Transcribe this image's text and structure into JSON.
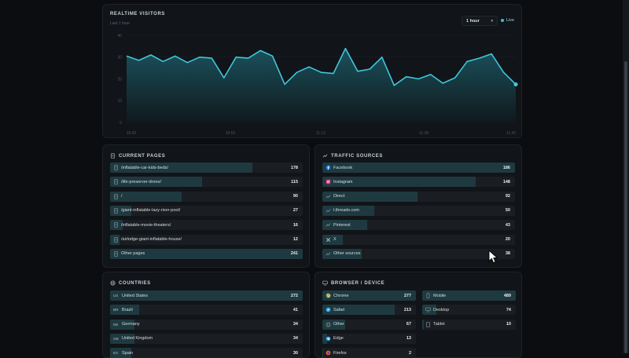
{
  "realtime": {
    "title": "REALTIME VISITORS",
    "subtitle": "Last 1 hour",
    "range": "1 hour",
    "live_label": "Live",
    "colors": {
      "line": "#3fc6dc",
      "fill_top": "#1c5560",
      "fill_bottom": "#0f1a1e"
    }
  },
  "chart_data": {
    "type": "area",
    "yticks": [
      0,
      10,
      20,
      30,
      40
    ],
    "ylim": [
      0,
      40
    ],
    "xticks": [
      "10:42",
      "10:55",
      "11:12",
      "11:28",
      "11:42"
    ],
    "values": [
      30.5,
      28.5,
      31,
      28,
      30.5,
      27.5,
      30,
      29.5,
      20.5,
      30,
      29.5,
      33,
      30.5,
      17.5,
      23,
      25.5,
      23,
      22.5,
      34,
      23.5,
      24.5,
      30,
      17,
      21,
      20,
      22,
      18,
      20.5,
      28,
      29.5,
      31.5,
      23,
      17.5
    ]
  },
  "current_pages": {
    "title": "CURRENT PAGES",
    "max": 241,
    "items": [
      {
        "label": "/inflatable-car-kids-beds/",
        "value": 178
      },
      {
        "label": "/life-preserver-drone/",
        "value": 115
      },
      {
        "label": "/",
        "value": 90
      },
      {
        "label": "/giant-inflatable-lazy-river-pool/",
        "value": 27
      },
      {
        "label": "/inflatable-movie-theaters/",
        "value": 16
      },
      {
        "label": "/airlodge-giant-inflatable-house/",
        "value": 12
      },
      {
        "label": "Other pages",
        "value": 241
      }
    ]
  },
  "traffic_sources": {
    "title": "TRAFFIC SOURCES",
    "max": 186,
    "items": [
      {
        "label": "Facebook",
        "value": 186,
        "icon": "facebook-icon"
      },
      {
        "label": "Instagram",
        "value": 148,
        "icon": "instagram-icon"
      },
      {
        "label": "Direct",
        "value": 92,
        "icon": "direct-icon"
      },
      {
        "label": "l.threads.com",
        "value": 50,
        "icon": "link-icon"
      },
      {
        "label": "Pinterest",
        "value": 43,
        "icon": "pinterest-icon"
      },
      {
        "label": "X",
        "value": 20,
        "icon": "x-icon"
      },
      {
        "label": "Other sources",
        "value": 38,
        "icon": "other-icon"
      }
    ]
  },
  "countries": {
    "title": "COUNTRIES",
    "max": 272,
    "items": [
      {
        "code": "US",
        "label": "United States",
        "value": 272
      },
      {
        "code": "BR",
        "label": "Brazil",
        "value": 41
      },
      {
        "code": "DE",
        "label": "Germany",
        "value": 34
      },
      {
        "code": "GB",
        "label": "United Kingdom",
        "value": 34
      },
      {
        "code": "ES",
        "label": "Spain",
        "value": 30
      }
    ]
  },
  "browser_device": {
    "title": "BROWSER / DEVICE",
    "browsers_max": 277,
    "browsers": [
      {
        "label": "Chrome",
        "value": 277,
        "icon": "chrome-icon"
      },
      {
        "label": "Safari",
        "value": 213,
        "icon": "safari-icon"
      },
      {
        "label": "Other",
        "value": 67,
        "icon": "other-browser-icon"
      },
      {
        "label": "Edge",
        "value": 13,
        "icon": "edge-icon"
      },
      {
        "label": "Firefox",
        "value": 2,
        "icon": "firefox-icon"
      }
    ],
    "devices_max": 489,
    "devices": [
      {
        "label": "Mobile",
        "value": 489,
        "icon": "mobile-icon"
      },
      {
        "label": "Desktop",
        "value": 74,
        "icon": "desktop-icon"
      },
      {
        "label": "Tablet",
        "value": 10,
        "icon": "tablet-icon"
      }
    ]
  }
}
